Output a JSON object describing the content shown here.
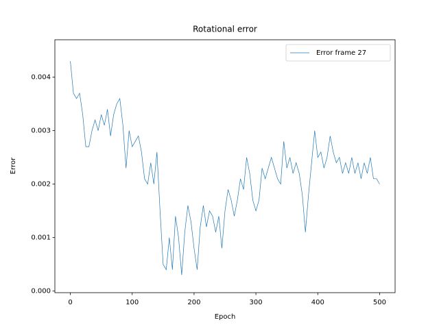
{
  "chart_data": {
    "type": "line",
    "title": "Rotational error",
    "x_label": "Epoch",
    "y_label": "Error",
    "x": [
      0,
      5,
      10,
      15,
      20,
      25,
      30,
      35,
      40,
      45,
      50,
      55,
      60,
      65,
      70,
      75,
      80,
      85,
      90,
      95,
      100,
      105,
      110,
      115,
      120,
      125,
      130,
      135,
      140,
      145,
      150,
      155,
      160,
      165,
      170,
      175,
      180,
      185,
      190,
      195,
      200,
      205,
      210,
      215,
      220,
      225,
      230,
      235,
      240,
      245,
      250,
      255,
      260,
      265,
      270,
      275,
      280,
      285,
      290,
      295,
      300,
      305,
      310,
      315,
      320,
      325,
      330,
      335,
      340,
      345,
      350,
      355,
      360,
      365,
      370,
      375,
      380,
      385,
      390,
      395,
      400,
      405,
      410,
      415,
      420,
      425,
      430,
      435,
      440,
      445,
      450,
      455,
      460,
      465,
      470,
      475,
      480,
      485,
      490,
      495,
      500
    ],
    "series": [
      {
        "name": "Error frame 27",
        "color": "#1f77b4",
        "values": [
          0.0043,
          0.0037,
          0.0036,
          0.0037,
          0.0033,
          0.0027,
          0.0027,
          0.003,
          0.0032,
          0.003,
          0.0033,
          0.0031,
          0.0034,
          0.0029,
          0.0033,
          0.0035,
          0.0036,
          0.0031,
          0.0023,
          0.003,
          0.0027,
          0.0028,
          0.0029,
          0.0026,
          0.0021,
          0.002,
          0.0024,
          0.002,
          0.0026,
          0.0015,
          0.0005,
          0.0004,
          0.001,
          0.0004,
          0.0014,
          0.001,
          0.0003,
          0.0011,
          0.0016,
          0.0013,
          0.0008,
          0.0004,
          0.0012,
          0.0016,
          0.0012,
          0.0015,
          0.0014,
          0.0011,
          0.0014,
          0.0008,
          0.0015,
          0.0019,
          0.0017,
          0.0014,
          0.0017,
          0.0021,
          0.0019,
          0.0025,
          0.0022,
          0.0017,
          0.0015,
          0.0017,
          0.0023,
          0.0021,
          0.0023,
          0.0025,
          0.0023,
          0.0021,
          0.002,
          0.0028,
          0.0023,
          0.0025,
          0.0022,
          0.0024,
          0.0022,
          0.0018,
          0.0011,
          0.0018,
          0.0024,
          0.003,
          0.0025,
          0.0026,
          0.0023,
          0.0025,
          0.0029,
          0.0026,
          0.0024,
          0.0025,
          0.0022,
          0.0024,
          0.0022,
          0.0025,
          0.0022,
          0.0024,
          0.0021,
          0.0024,
          0.0022,
          0.0025,
          0.0021,
          0.0021,
          0.002
        ]
      }
    ],
    "xlim": [
      -25,
      525
    ],
    "xticks": [
      0,
      100,
      200,
      300,
      400,
      500
    ],
    "ylim": [
      -3e-05,
      0.0047
    ],
    "yticks": [
      {
        "value": 0,
        "label": "0.000"
      },
      {
        "value": 0.001,
        "label": "0.001"
      },
      {
        "value": 0.002,
        "label": "0.002"
      },
      {
        "value": 0.003,
        "label": "0.003"
      },
      {
        "value": 0.004,
        "label": "0.004"
      }
    ],
    "legend": "upper right"
  }
}
